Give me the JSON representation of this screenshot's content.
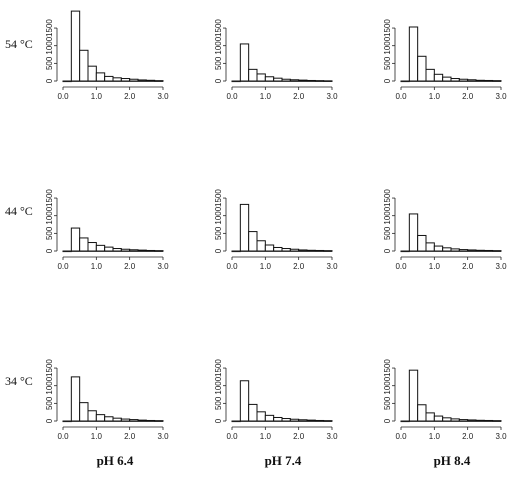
{
  "chart_data": {
    "type": "bar",
    "layout": "3x3 grid of histograms",
    "rows": [
      "54 °C",
      "44 °C",
      "34 °C"
    ],
    "columns": [
      "pH 6.4",
      "pH 7.4",
      "pH 8.4"
    ],
    "bin_edges": [
      0.0,
      0.25,
      0.5,
      0.75,
      1.0,
      1.25,
      1.5,
      1.75,
      2.0,
      2.25,
      2.5,
      2.75,
      3.0
    ],
    "xlim": [
      0.0,
      3.0
    ],
    "ylim": [
      0,
      2000
    ],
    "x_ticks": [
      "0.0",
      "1.0",
      "2.0",
      "3.0"
    ],
    "x_ticks_raw": [
      "0.0",
      "1.0",
      "2.0",
      "3.0"
    ],
    "y_ticks": [
      "0",
      "500",
      "1000",
      "1500"
    ],
    "panels": [
      {
        "row": "54 °C",
        "column": "pH 6.4",
        "counts": [
          0,
          1980,
          870,
          420,
          230,
          130,
          90,
          70,
          50,
          30,
          20,
          10
        ]
      },
      {
        "row": "54 °C",
        "column": "pH 7.4",
        "counts": [
          0,
          1050,
          330,
          200,
          120,
          80,
          50,
          35,
          25,
          15,
          10,
          5
        ]
      },
      {
        "row": "54 °C",
        "column": "pH 8.4",
        "counts": [
          0,
          1530,
          700,
          330,
          190,
          110,
          70,
          50,
          35,
          20,
          15,
          10
        ]
      },
      {
        "row": "44 °C",
        "column": "pH 6.4",
        "counts": [
          0,
          650,
          370,
          240,
          160,
          110,
          70,
          50,
          35,
          25,
          15,
          10
        ]
      },
      {
        "row": "44 °C",
        "column": "pH 7.4",
        "counts": [
          0,
          1320,
          550,
          290,
          170,
          100,
          70,
          50,
          30,
          20,
          15,
          10
        ]
      },
      {
        "row": "44 °C",
        "column": "pH 8.4",
        "counts": [
          0,
          1050,
          440,
          230,
          140,
          90,
          60,
          40,
          30,
          20,
          15,
          10
        ]
      },
      {
        "row": "34 °C",
        "column": "pH 6.4",
        "counts": [
          0,
          1250,
          520,
          290,
          180,
          120,
          80,
          55,
          40,
          25,
          15,
          10
        ]
      },
      {
        "row": "34 °C",
        "column": "pH 7.4",
        "counts": [
          0,
          1140,
          470,
          260,
          160,
          100,
          70,
          50,
          35,
          25,
          15,
          10
        ]
      },
      {
        "row": "34 °C",
        "column": "pH 8.4",
        "counts": [
          0,
          1440,
          460,
          230,
          140,
          90,
          60,
          40,
          30,
          20,
          15,
          10
        ]
      }
    ]
  }
}
